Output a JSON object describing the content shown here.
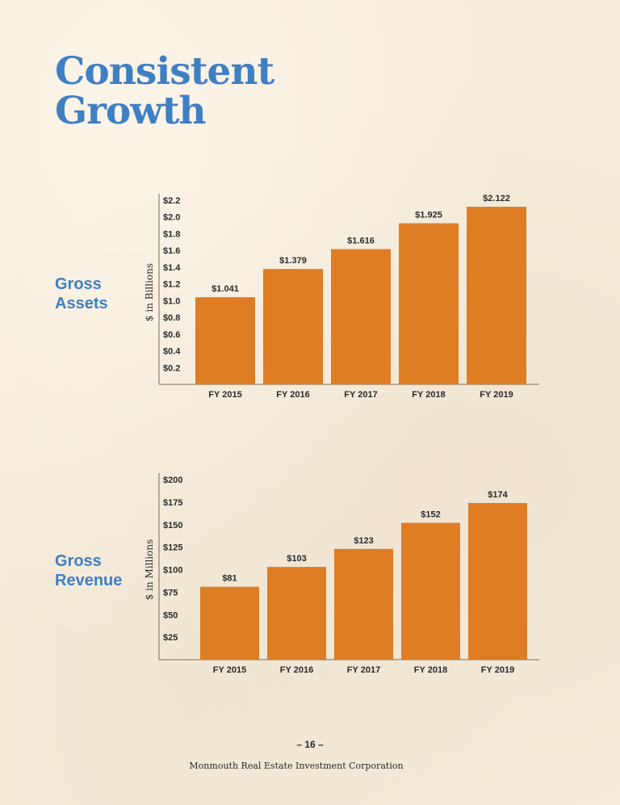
{
  "page": {
    "title_line1": "Consistent",
    "title_line2": "Growth",
    "page_number": "– 16 –",
    "corporation": "Monmouth Real Estate Investment Corporation"
  },
  "sections": {
    "assets": {
      "line1": "Gross",
      "line2": "Assets"
    },
    "revenue": {
      "line1": "Gross",
      "line2": "Revenue"
    }
  },
  "colors": {
    "bar": "#df7d25",
    "title": "#3f7fc4",
    "axis": "#7a6a55"
  },
  "chart_data": [
    {
      "type": "bar",
      "title": "",
      "xlabel": "",
      "ylabel": "$ in Billions",
      "categories": [
        "FY 2015",
        "FY 2016",
        "FY 2017",
        "FY 2018",
        "FY 2019"
      ],
      "values": [
        1.041,
        1.379,
        1.616,
        1.925,
        2.122
      ],
      "data_labels": [
        "$1.041",
        "$1.379",
        "$1.616",
        "$1.925",
        "$2.122"
      ],
      "yticks": [
        0.2,
        0.4,
        0.6,
        0.8,
        1.0,
        1.2,
        1.4,
        1.6,
        1.8,
        2.0,
        2.2
      ],
      "ytick_labels": [
        "$0.2",
        "$0.4",
        "$0.6",
        "$0.8",
        "$1.0",
        "$1.2",
        "$1.4",
        "$1.6",
        "$1.8",
        "$2.0",
        "$2.2"
      ],
      "ylim": [
        0,
        2.2
      ],
      "grid": false,
      "legend": "none"
    },
    {
      "type": "bar",
      "title": "",
      "xlabel": "",
      "ylabel": "$ in Millions",
      "categories": [
        "FY 2015",
        "FY 2016",
        "FY 2017",
        "FY 2018",
        "FY 2019"
      ],
      "values": [
        81,
        103,
        123,
        152,
        174
      ],
      "data_labels": [
        "$81",
        "$103",
        "$123",
        "$152",
        "$174"
      ],
      "yticks": [
        25,
        50,
        75,
        100,
        125,
        150,
        175,
        200
      ],
      "ytick_labels": [
        "$25",
        "$50",
        "$75",
        "$100",
        "$125",
        "$150",
        "$175",
        "$200"
      ],
      "ylim": [
        0,
        200
      ],
      "grid": false,
      "legend": "none"
    }
  ]
}
